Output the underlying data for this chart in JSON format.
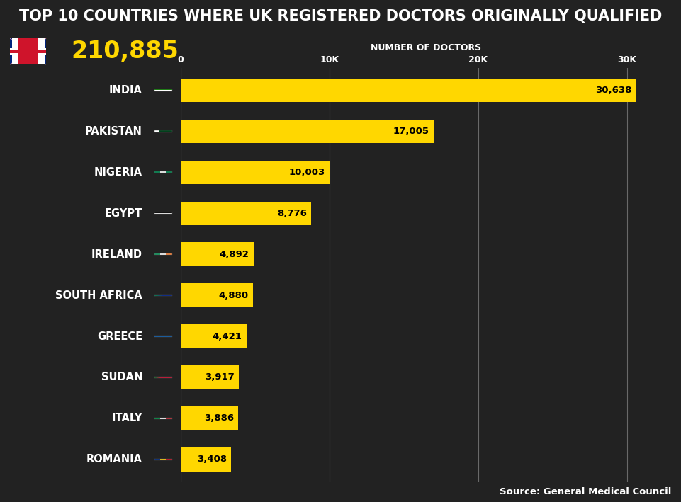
{
  "title": "TOP 10 COUNTRIES WHERE UK REGISTERED DOCTORS ORIGINALLY QUALIFIED",
  "title_bg": "#cc0000",
  "uk_total": "210,885",
  "source": "Source: General Medical Council",
  "xlabel": "NUMBER OF DOCTORS",
  "xticks": [
    0,
    10000,
    20000,
    30000
  ],
  "xtick_labels": [
    "0",
    "10K",
    "20K",
    "30K"
  ],
  "xlim": [
    0,
    33000
  ],
  "bar_color": "#FFD700",
  "bg_color": "#222222",
  "countries": [
    "INDIA",
    "PAKISTAN",
    "NIGERIA",
    "EGYPT",
    "IRELAND",
    "SOUTH AFRICA",
    "GREECE",
    "SUDAN",
    "ITALY",
    "ROMANIA"
  ],
  "values": [
    30638,
    17005,
    10003,
    8776,
    4892,
    4880,
    4421,
    3917,
    3886,
    3408
  ],
  "value_labels": [
    "30,638",
    "17,005",
    "10,003",
    "8,776",
    "4,892",
    "4,880",
    "4,421",
    "3,917",
    "3,886",
    "3,408"
  ],
  "text_color": "#ffffff",
  "bar_label_color": "#000000",
  "bar_height": 0.58,
  "grid_color": "#888888",
  "title_fontsize": 15,
  "country_fontsize": 10.5,
  "value_fontsize": 9.5,
  "uk_fontsize": 24,
  "xlabel_fontsize": 9,
  "source_fontsize": 9.5,
  "flag_data": {
    "INDIA": {
      "colors": [
        "#FF9933",
        "#FFFFFF",
        "#138808"
      ],
      "type": "triband_h",
      "emblem": "blue"
    },
    "PAKISTAN": {
      "colors": [
        "#01411C",
        "#FFFFFF"
      ],
      "type": "pakistan"
    },
    "NIGERIA": {
      "colors": [
        "#008751",
        "#FFFFFF",
        "#008751"
      ],
      "type": "triband_v"
    },
    "EGYPT": {
      "colors": [
        "#CE1126",
        "#FFFFFF",
        "#000000"
      ],
      "type": "triband_h"
    },
    "IRELAND": {
      "colors": [
        "#169B62",
        "#FFFFFF",
        "#FF883E"
      ],
      "type": "triband_v"
    },
    "SOUTH AFRICA": {
      "colors": [
        "#007A4D",
        "#000000",
        "#DE3831",
        "#FFB612",
        "#FFFFFF"
      ],
      "type": "southafrica"
    },
    "GREECE": {
      "colors": [
        "#0D5EAF",
        "#FFFFFF"
      ],
      "type": "greece"
    },
    "SUDAN": {
      "colors": [
        "#D21034",
        "#FFFFFF",
        "#000000"
      ],
      "type": "sudan"
    },
    "ITALY": {
      "colors": [
        "#009246",
        "#FFFFFF",
        "#CE2B37"
      ],
      "type": "triband_v"
    },
    "ROMANIA": {
      "colors": [
        "#002B7F",
        "#FCD116",
        "#CE1126"
      ],
      "type": "triband_v"
    }
  }
}
